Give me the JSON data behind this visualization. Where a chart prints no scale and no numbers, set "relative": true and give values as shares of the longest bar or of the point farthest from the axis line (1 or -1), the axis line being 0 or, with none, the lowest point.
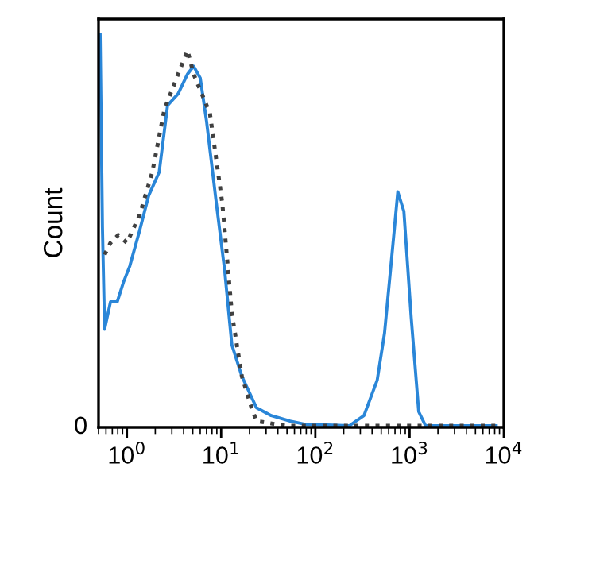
{
  "chart_data": {
    "type": "line",
    "relative": true,
    "log": "x",
    "ylabel": "Count",
    "annotations": [
      "0"
    ],
    "xlim": [
      0.5,
      10000
    ],
    "xticks": [
      {
        "value": 1,
        "label": "10$^{0}$"
      },
      {
        "value": 10,
        "label": "10$^{1}$"
      },
      {
        "value": 100,
        "label": "10$^{2}$"
      },
      {
        "value": 1000,
        "label": "10$^{3}$"
      },
      {
        "value": 10000,
        "label": "10$^{4}$"
      }
    ],
    "grid": false,
    "legend": false,
    "series": [
      {
        "color": "#2a86d8",
        "line_style": "solid",
        "x": [
          0.52,
          0.55,
          0.58,
          0.67,
          0.79,
          0.92,
          1.07,
          1.36,
          1.7,
          2.2,
          2.7,
          3.5,
          4.4,
          5.1,
          6.0,
          7.0,
          8.8,
          10.9,
          13,
          16.6,
          23.7,
          34,
          54,
          78,
          229,
          328,
          453,
          542,
          650,
          750,
          870,
          1040,
          1250,
          1480,
          8300
        ],
        "values": [
          1.0,
          0.51,
          0.25,
          0.32,
          0.32,
          0.37,
          0.41,
          0.5,
          0.59,
          0.65,
          0.82,
          0.85,
          0.9,
          0.92,
          0.89,
          0.78,
          0.58,
          0.4,
          0.21,
          0.13,
          0.05,
          0.03,
          0.016,
          0.008,
          0.004,
          0.03,
          0.12,
          0.24,
          0.44,
          0.6,
          0.55,
          0.28,
          0.04,
          0.004,
          0.004
        ]
      },
      {
        "color": "#404040",
        "line_style": "dotted",
        "x": [
          0.58,
          0.67,
          0.81,
          1.0,
          1.36,
          1.86,
          2.5,
          3.5,
          4.4,
          5.1,
          7.6,
          10.3,
          13,
          16.6,
          21,
          23.7,
          49,
          8300
        ],
        "values": [
          0.44,
          0.47,
          0.49,
          0.47,
          0.54,
          0.65,
          0.81,
          0.9,
          0.96,
          0.9,
          0.8,
          0.57,
          0.29,
          0.13,
          0.05,
          0.016,
          0.004,
          0.004
        ]
      }
    ]
  }
}
